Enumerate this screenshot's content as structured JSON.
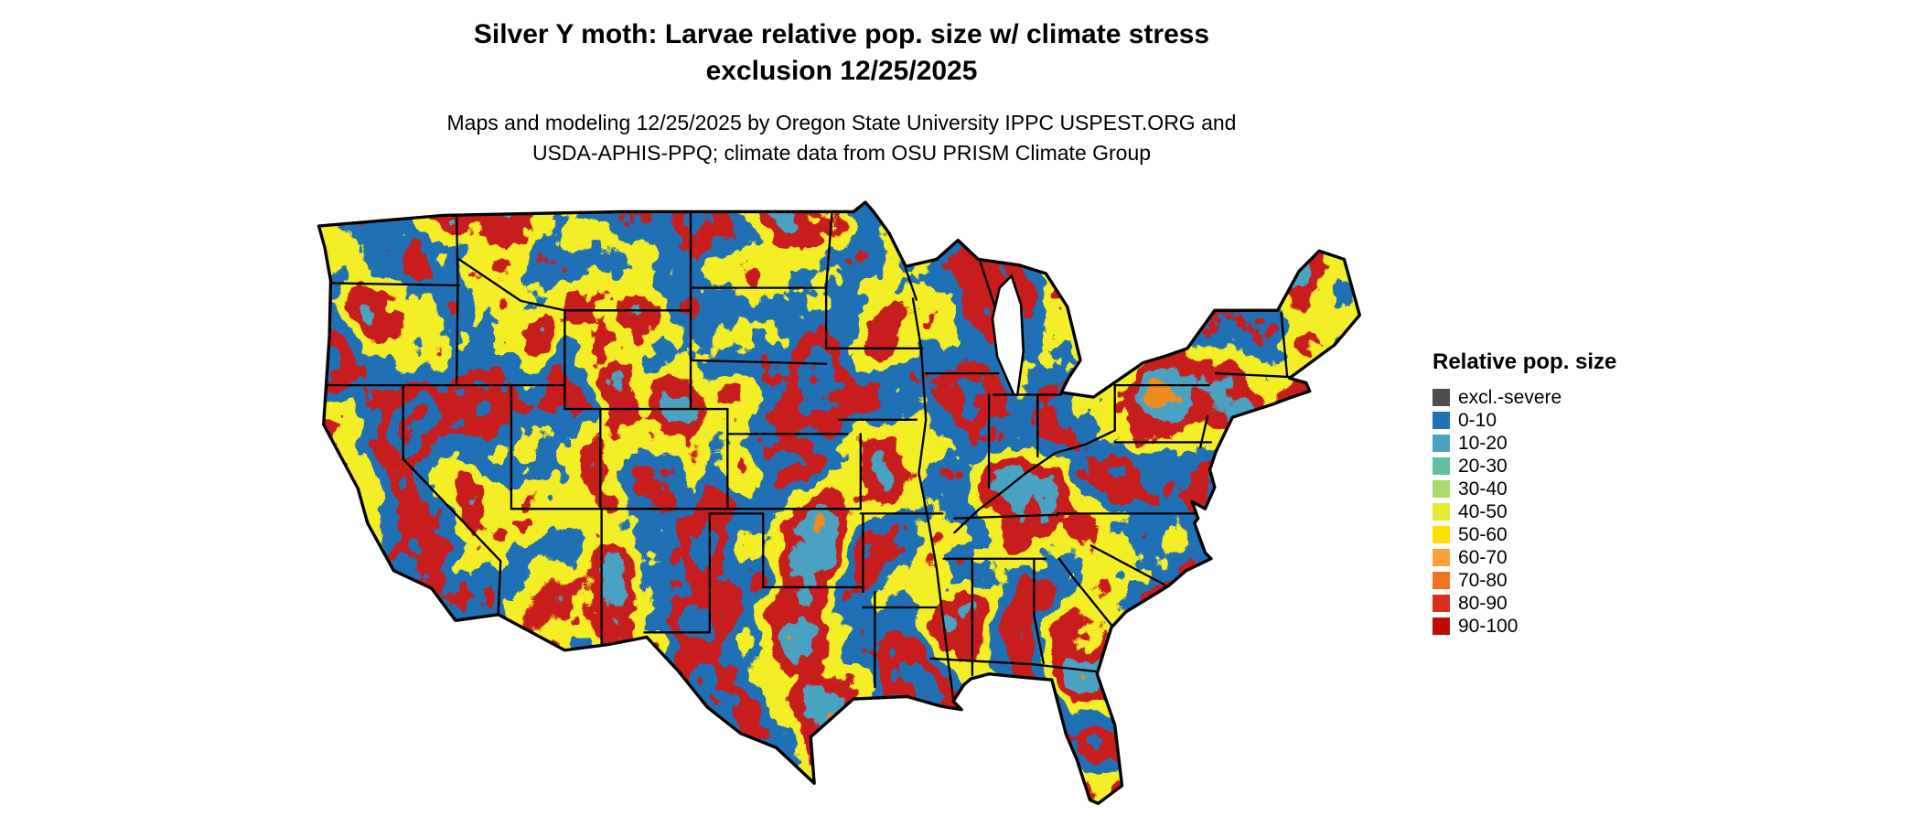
{
  "title": {
    "line1": "Silver Y moth: Larvae relative pop. size w/ climate stress",
    "line2": "exclusion 12/25/2025"
  },
  "subtitle": {
    "line1": "Maps and modeling 12/25/2025 by Oregon State University IPPC USPEST.ORG and",
    "line2": "USDA-APHIS-PPQ; climate data from OSU PRISM Climate Group"
  },
  "map": {
    "region": "Continental United States",
    "kind": "raster relative population size map"
  },
  "legend": {
    "title": "Relative pop. size",
    "items": [
      {
        "label": "excl.-severe",
        "color": "#4d4d4d"
      },
      {
        "label": "0-10",
        "color": "#2171b5"
      },
      {
        "label": "10-20",
        "color": "#4ba3c3"
      },
      {
        "label": "20-30",
        "color": "#63bfa4"
      },
      {
        "label": "30-40",
        "color": "#a9d96a"
      },
      {
        "label": "40-50",
        "color": "#e3ee35"
      },
      {
        "label": "50-60",
        "color": "#ffdf00"
      },
      {
        "label": "60-70",
        "color": "#f9a13b"
      },
      {
        "label": "70-80",
        "color": "#ef7422"
      },
      {
        "label": "80-90",
        "color": "#d7301f"
      },
      {
        "label": "90-100",
        "color": "#c00a0a"
      }
    ]
  }
}
